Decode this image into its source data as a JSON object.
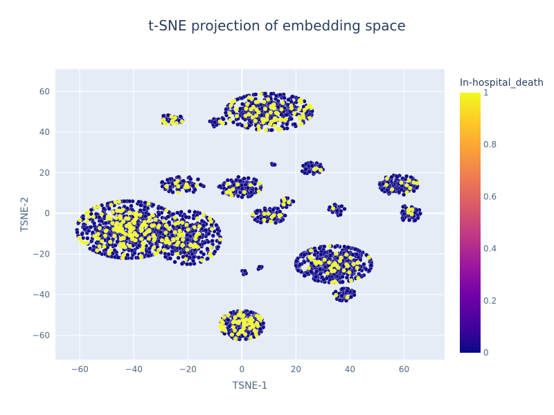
{
  "chart_data": {
    "type": "scatter",
    "title": "t-SNE projection of embedding space",
    "xlabel": "TSNE-1",
    "ylabel": "TSNE-2",
    "xlim": [
      -69,
      75
    ],
    "ylim": [
      -72,
      71
    ],
    "xticks": [
      "−60",
      "−40",
      "−20",
      "0",
      "20",
      "40",
      "60"
    ],
    "xtick_values": [
      -60,
      -40,
      -20,
      0,
      20,
      40,
      60
    ],
    "yticks": [
      "−60",
      "−40",
      "−20",
      "0",
      "20",
      "40",
      "60"
    ],
    "ytick_values": [
      -60,
      -40,
      -20,
      0,
      20,
      40,
      60
    ],
    "grid": true,
    "plot_bgcolor": "#e5ecf6",
    "colorbar": {
      "title": "In-hospital_death",
      "range": [
        0,
        1
      ],
      "ticks": [
        "0",
        "0.2",
        "0.4",
        "0.6",
        "0.8",
        "1"
      ],
      "tick_values": [
        0,
        0.2,
        0.4,
        0.6,
        0.8,
        1
      ],
      "colors": [
        "#0d0887",
        "#46039f",
        "#7201a8",
        "#9c179e",
        "#bd3786",
        "#d8576b",
        "#ed7953",
        "#fb9f3a",
        "#fdca26",
        "#f0f921"
      ]
    },
    "clusters": [
      {
        "cx": -42,
        "cy": -8,
        "rx": 19,
        "ry": 14,
        "n": 900,
        "pos_rate": 0.16
      },
      {
        "cx": -20,
        "cy": -12,
        "rx": 12,
        "ry": 13,
        "n": 420,
        "pos_rate": 0.1
      },
      {
        "cx": -22,
        "cy": 14,
        "rx": 8,
        "ry": 4,
        "n": 90,
        "pos_rate": 0.08
      },
      {
        "cx": -26,
        "cy": 46,
        "rx": 4,
        "ry": 3,
        "n": 55,
        "pos_rate": 0.3
      },
      {
        "cx": -9,
        "cy": 45,
        "rx": 3,
        "ry": 2.5,
        "n": 30,
        "pos_rate": 0.15
      },
      {
        "cx": 10,
        "cy": 50,
        "rx": 16,
        "ry": 9,
        "n": 480,
        "pos_rate": 0.16
      },
      {
        "cx": 0,
        "cy": 13,
        "rx": 7,
        "ry": 5,
        "n": 140,
        "pos_rate": 0.06
      },
      {
        "cx": 10,
        "cy": -1,
        "rx": 6,
        "ry": 4,
        "n": 110,
        "pos_rate": 0.07
      },
      {
        "cx": 17,
        "cy": 5,
        "rx": 3,
        "ry": 2.5,
        "n": 25,
        "pos_rate": 0.1
      },
      {
        "cx": 26,
        "cy": 22,
        "rx": 4,
        "ry": 3,
        "n": 60,
        "pos_rate": 0.05
      },
      {
        "cx": 34,
        "cy": -25,
        "rx": 14,
        "ry": 9,
        "n": 520,
        "pos_rate": 0.07
      },
      {
        "cx": 38,
        "cy": -40,
        "rx": 4,
        "ry": 3,
        "n": 45,
        "pos_rate": 0.05
      },
      {
        "cx": 35,
        "cy": 2,
        "rx": 3,
        "ry": 3,
        "n": 30,
        "pos_rate": 0.03
      },
      {
        "cx": 58,
        "cy": 14,
        "rx": 7,
        "ry": 5,
        "n": 180,
        "pos_rate": 0.05
      },
      {
        "cx": 62,
        "cy": 0,
        "rx": 4,
        "ry": 4,
        "n": 60,
        "pos_rate": 0.05
      },
      {
        "cx": 0,
        "cy": -55,
        "rx": 8,
        "ry": 7,
        "n": 330,
        "pos_rate": 0.14
      },
      {
        "cx": 1,
        "cy": -29,
        "rx": 1,
        "ry": 1.5,
        "n": 7,
        "pos_rate": 0
      },
      {
        "cx": 7,
        "cy": -27,
        "rx": 1,
        "ry": 0.8,
        "n": 4,
        "pos_rate": 0.25
      },
      {
        "cx": 12,
        "cy": 24,
        "rx": 1,
        "ry": 1,
        "n": 5,
        "pos_rate": 0
      },
      {
        "cx": -6,
        "cy": 12,
        "rx": 3,
        "ry": 2,
        "n": 15,
        "pos_rate": 0.1
      }
    ]
  }
}
